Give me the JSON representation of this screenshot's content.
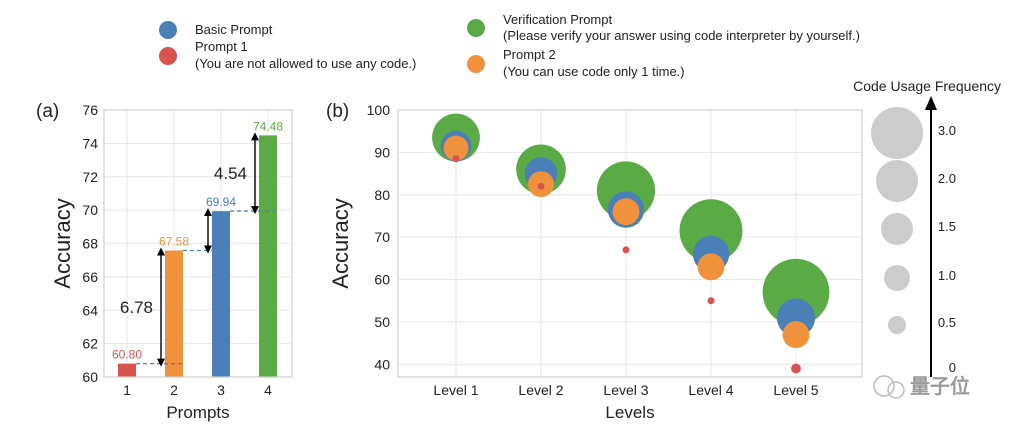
{
  "legend": {
    "items": [
      {
        "label": "Basic Prompt",
        "sublabel": "",
        "color": "#4a7fb8"
      },
      {
        "label": "Prompt 1",
        "sublabel": "(You are not allowed to use any code.)",
        "color": "#d9534f"
      },
      {
        "label": "Verification Prompt",
        "sublabel": "(Please verify your answer using code interpreter by yourself.)",
        "color": "#5aaa46"
      },
      {
        "label": "Prompt 2",
        "sublabel": "(You can use code only 1 time.)",
        "color": "#f0923c"
      }
    ]
  },
  "watermark": "量子位",
  "chart_data": [
    {
      "type": "bar",
      "panel_label": "(a)",
      "title": "",
      "xlabel": "Prompts",
      "ylabel": "Accuracy",
      "categories": [
        "1",
        "2",
        "3",
        "4"
      ],
      "values": [
        60.8,
        67.58,
        69.94,
        74.48
      ],
      "value_labels": [
        "60.80",
        "67.58",
        "69.94",
        "74.48"
      ],
      "bar_colors": [
        "#d9534f",
        "#f0923c",
        "#4a7fb8",
        "#5aaa46"
      ],
      "ylim": [
        60,
        76
      ],
      "yticks": [
        60,
        62,
        64,
        66,
        68,
        70,
        72,
        74,
        76
      ],
      "grid": true,
      "annotations": [
        {
          "from": 60.8,
          "to": 67.58,
          "text": "6.78"
        },
        {
          "from": 67.58,
          "to": 69.94,
          "text": ""
        },
        {
          "from": 69.94,
          "to": 74.48,
          "text": "4.54"
        }
      ]
    },
    {
      "type": "scatter",
      "panel_label": "(b)",
      "title": "",
      "xlabel": "Levels",
      "ylabel": "Accuracy",
      "categories": [
        "Level 1",
        "Level 2",
        "Level 3",
        "Level 4",
        "Level 5"
      ],
      "ylim": [
        37,
        100
      ],
      "yticks": [
        40,
        50,
        60,
        70,
        80,
        90,
        100
      ],
      "grid": true,
      "size_meaning": "Code Usage Frequency",
      "series": [
        {
          "name": "Verification Prompt",
          "color": "#5aaa46",
          "values": [
            93.5,
            86,
            81,
            71.5,
            57
          ],
          "code_usage": [
            2.2,
            2.3,
            2.75,
            3.0,
            3.2
          ]
        },
        {
          "name": "Basic Prompt",
          "color": "#4a7fb8",
          "values": [
            91.5,
            85,
            76.5,
            66,
            51
          ],
          "code_usage": [
            1.3,
            1.4,
            1.6,
            1.6,
            1.7
          ]
        },
        {
          "name": "Prompt 2",
          "color": "#f0923c",
          "values": [
            91,
            82.5,
            76,
            63,
            47
          ],
          "code_usage": [
            1.0,
            1.05,
            1.1,
            1.1,
            1.1
          ]
        },
        {
          "name": "Prompt 1",
          "color": "#d9534f",
          "values": [
            88.5,
            82,
            67,
            55,
            39
          ],
          "code_usage": [
            0.05,
            0.05,
            0.05,
            0.05,
            0.2
          ]
        }
      ],
      "size_legend": {
        "title": "Code Usage Frequency",
        "values": [
          3.0,
          2.0,
          1.5,
          1.0,
          0.5,
          0
        ],
        "labels": [
          "3.0",
          "2.0",
          "1.5",
          "1.0",
          "0.5",
          "0"
        ],
        "color": "#cccccc"
      }
    }
  ]
}
